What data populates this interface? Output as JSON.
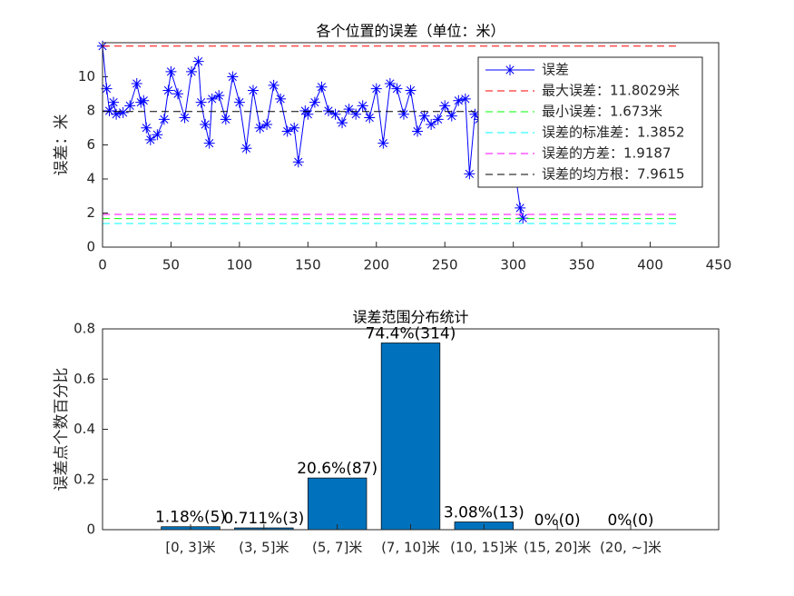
{
  "chart_data": [
    {
      "type": "line",
      "title": "各个位置的误差（单位：米）",
      "ylabel": "误差：米",
      "xlim": [
        0,
        450
      ],
      "xticks": [
        0,
        50,
        100,
        150,
        200,
        250,
        300,
        350,
        400,
        450
      ],
      "ylim": [
        0,
        12
      ],
      "yticks": [
        0,
        2,
        4,
        6,
        8,
        10
      ],
      "legend": "northeast",
      "series": [
        {
          "name": "误差",
          "color": "#0000ff",
          "marker": "*",
          "x": [
            0,
            3,
            5,
            8,
            10,
            15,
            20,
            25,
            28,
            30,
            32,
            35,
            40,
            45,
            48,
            50,
            55,
            60,
            65,
            70,
            72,
            75,
            78,
            80,
            85,
            90,
            95,
            100,
            105,
            110,
            115,
            120,
            125,
            130,
            135,
            140,
            143,
            148,
            150,
            155,
            160,
            165,
            170,
            175,
            180,
            185,
            190,
            195,
            200,
            205,
            210,
            215,
            220,
            225,
            230,
            235,
            240,
            245,
            250,
            255,
            260,
            265,
            268,
            272,
            275,
            280,
            285,
            290,
            295,
            300,
            305,
            307
          ],
          "values": [
            11.8,
            9.3,
            8.0,
            8.5,
            7.8,
            7.9,
            8.3,
            9.6,
            8.5,
            8.6,
            7.0,
            6.3,
            6.6,
            7.5,
            9.2,
            10.3,
            9.0,
            7.6,
            10.3,
            10.9,
            8.5,
            7.2,
            6.1,
            8.7,
            8.9,
            7.5,
            10.0,
            8.5,
            5.8,
            9.2,
            7.0,
            7.2,
            9.5,
            8.7,
            6.8,
            7.0,
            5.0,
            8.0,
            7.8,
            8.5,
            9.4,
            8.0,
            7.8,
            7.3,
            8.1,
            7.8,
            8.3,
            7.6,
            9.3,
            6.1,
            9.6,
            9.3,
            7.8,
            9.2,
            6.8,
            7.7,
            7.2,
            7.5,
            8.3,
            7.7,
            8.6,
            8.7,
            4.3,
            7.8,
            7.5,
            6.8,
            6.3,
            6.0,
            5.5,
            5.2,
            2.3,
            1.7
          ]
        },
        {
          "name": "最大误差：11.8029米",
          "color": "#ff0000",
          "dash": true,
          "x": [
            0,
            422
          ],
          "values": [
            11.8029,
            11.8029
          ]
        },
        {
          "name": "最小误差：1.673米",
          "color": "#00ff00",
          "dash": true,
          "x": [
            0,
            422
          ],
          "values": [
            1.673,
            1.673
          ]
        },
        {
          "name": "误差的标准差：1.3852",
          "color": "#00ffff",
          "dash": true,
          "x": [
            0,
            422
          ],
          "values": [
            1.3852,
            1.3852
          ]
        },
        {
          "name": "误差的方差：1.9187",
          "color": "#ff00ff",
          "dash": true,
          "x": [
            0,
            422
          ],
          "values": [
            1.9187,
            1.9187
          ]
        },
        {
          "name": "误差的均方根：7.9615",
          "color": "#000000",
          "dash": true,
          "x": [
            0,
            422
          ],
          "values": [
            7.9615,
            7.9615
          ]
        }
      ]
    },
    {
      "type": "bar",
      "title": "误差范围分布统计",
      "ylabel": "误差点个数百分比",
      "categories": [
        "[0, 3]米",
        "(3, 5]米",
        "(5, 7]米",
        "(7, 10]米",
        "(10, 15]米",
        "(15, 20]米",
        "(20, ~]米"
      ],
      "values": [
        0.0118,
        0.00711,
        0.206,
        0.744,
        0.0308,
        0,
        0
      ],
      "value_labels": [
        "1.18%(5)",
        "0.711%(3)",
        "20.6%(87)",
        "74.4%(314)",
        "3.08%(13)",
        "0%(0)",
        "0%(0)"
      ],
      "color": "#0072bd",
      "ylim": [
        0,
        0.8
      ],
      "yticks": [
        0,
        0.2,
        0.4,
        0.6,
        0.8
      ]
    }
  ]
}
